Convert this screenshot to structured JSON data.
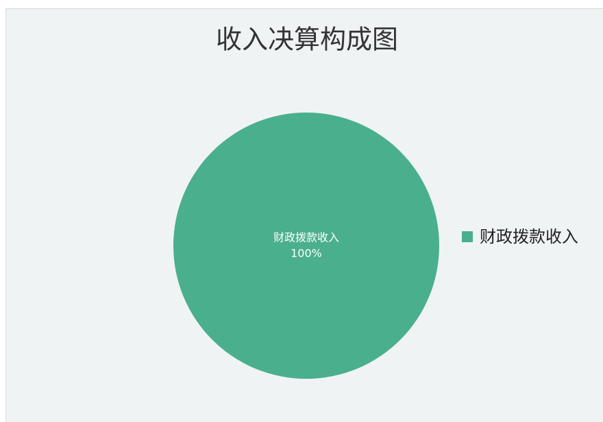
{
  "chart_data": {
    "type": "pie",
    "title": "收入决算构成图",
    "categories": [
      "财政拨款收入"
    ],
    "values": [
      100
    ],
    "value_labels": [
      "100%"
    ],
    "colors": [
      "#4aaf8c"
    ],
    "legend": "right"
  }
}
